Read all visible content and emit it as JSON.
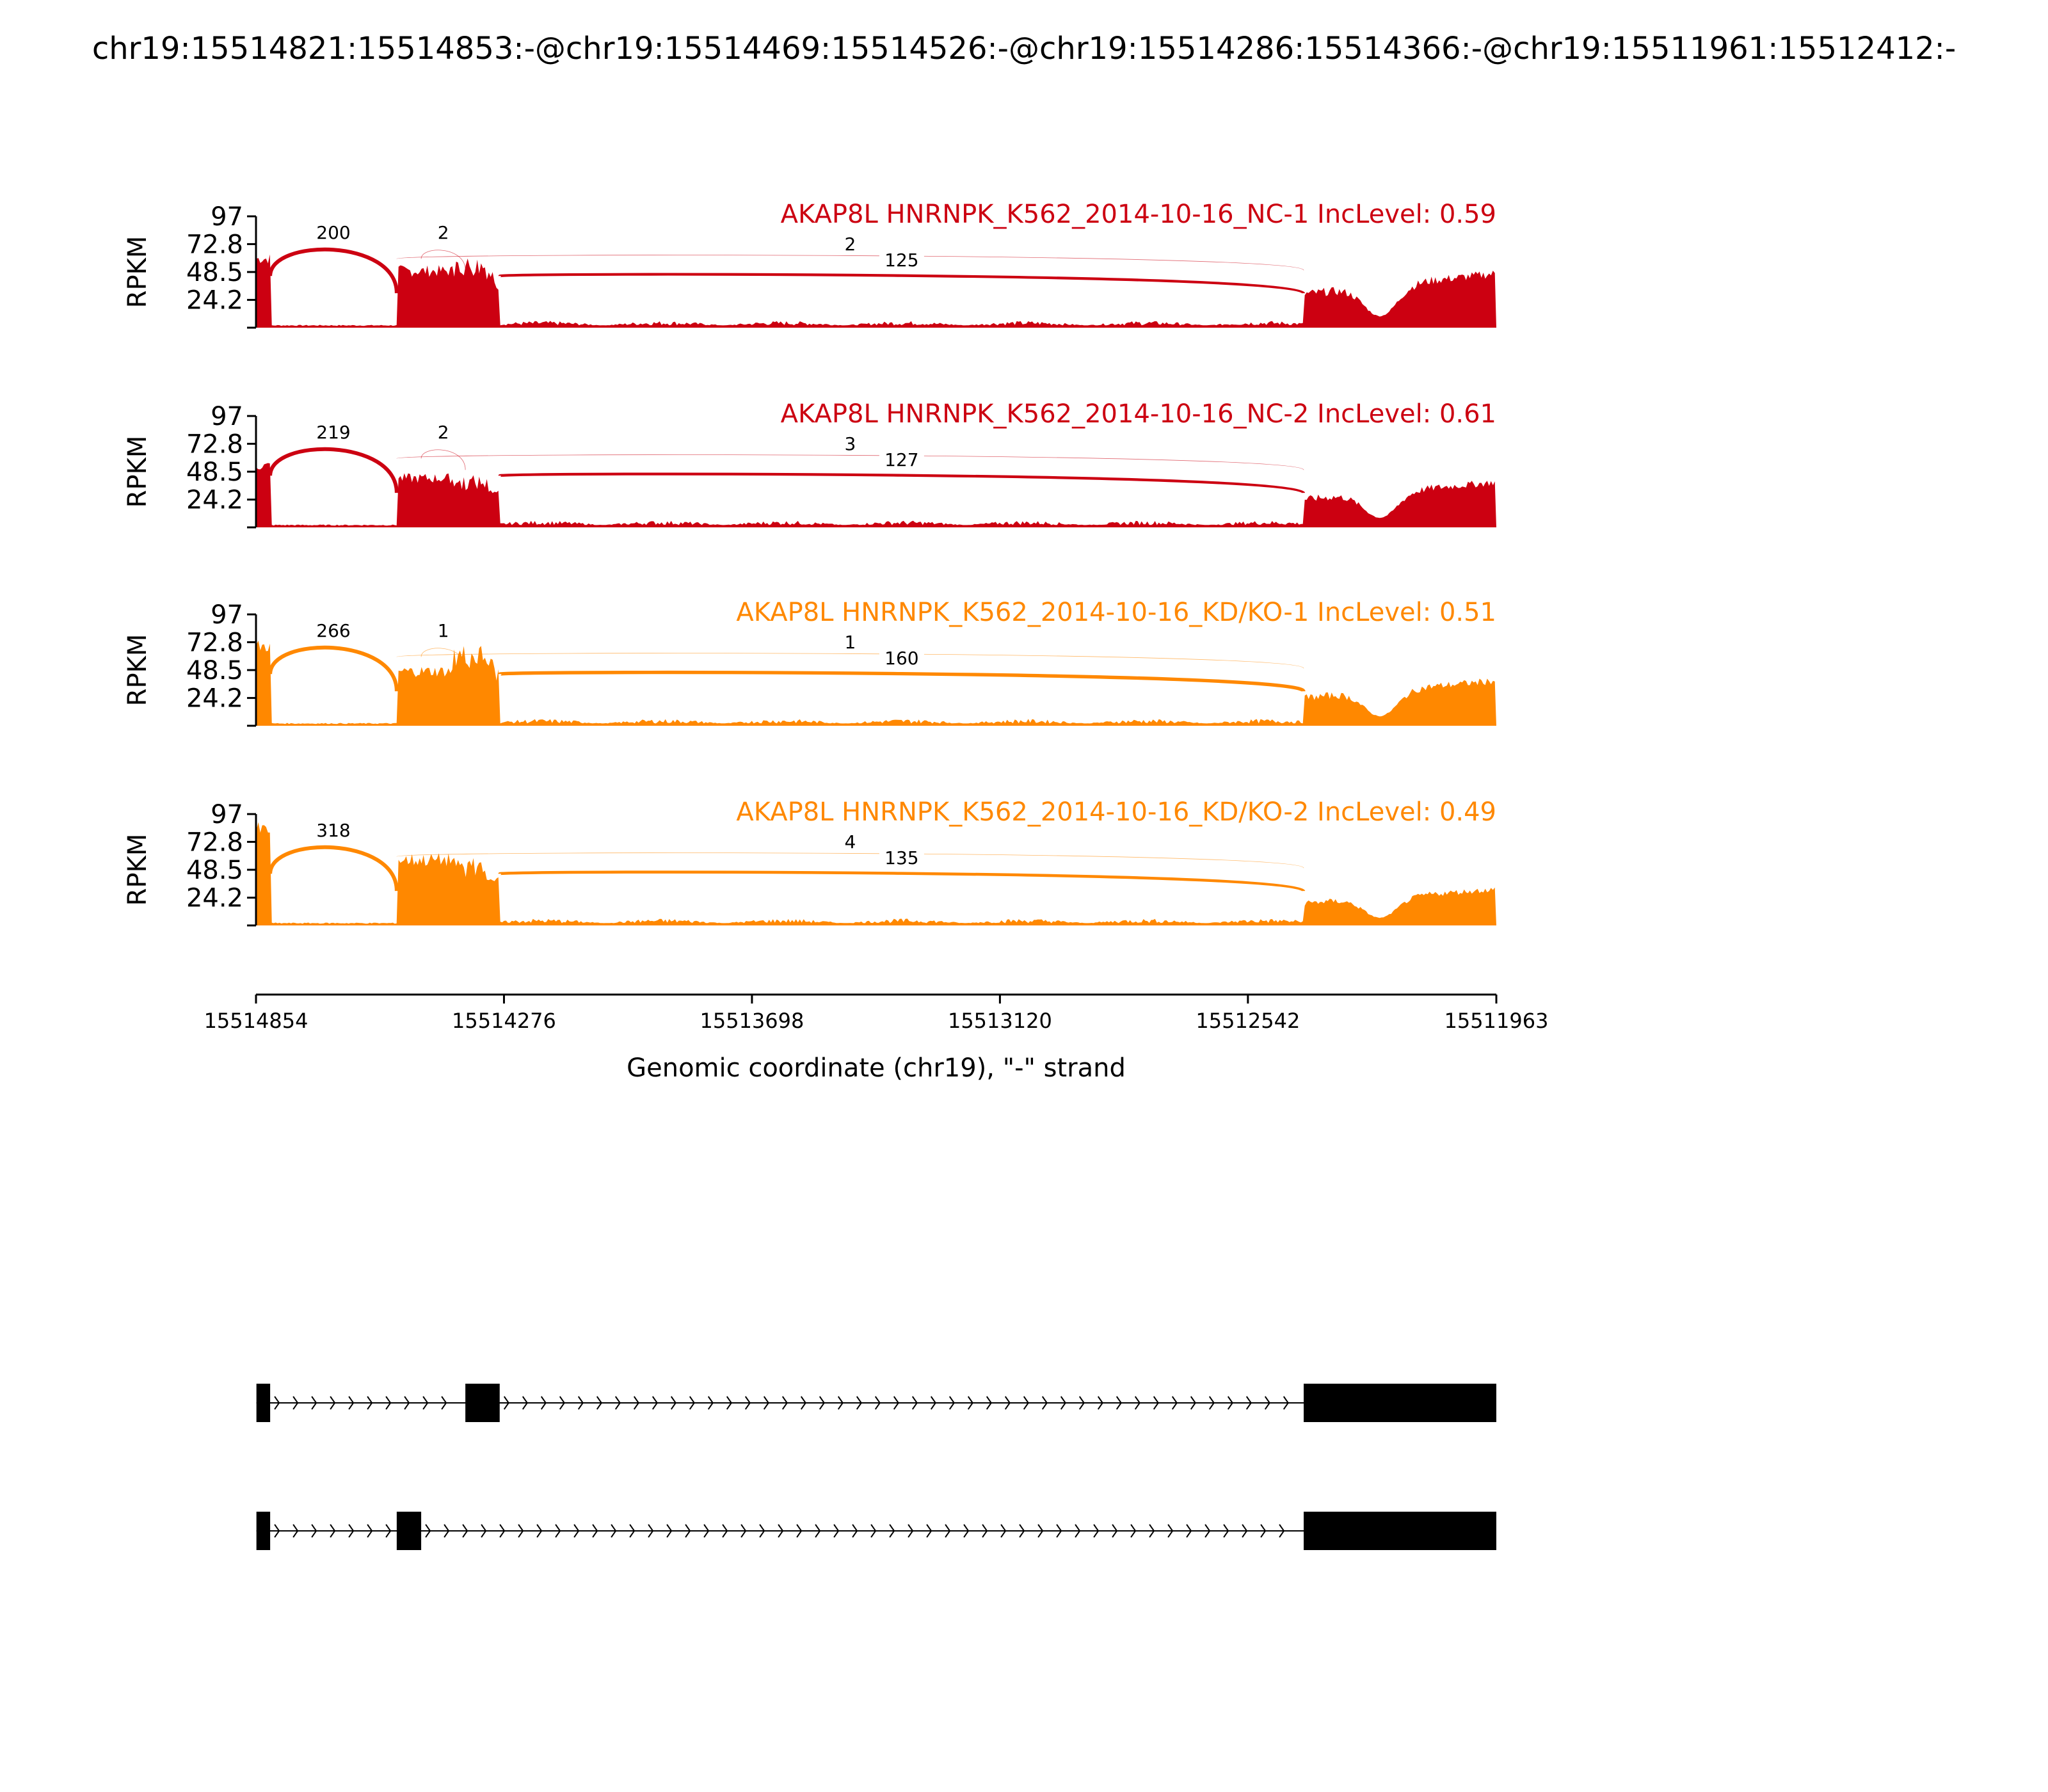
{
  "title": "chr19:15514821:15514853:-@chr19:15514469:15514526:-@chr19:15514286:15514366:-@chr19:15511961:15512412:-",
  "chart_data": {
    "type": "area",
    "subtype": "sashimi",
    "ylabel": "RPKM",
    "xlabel": "Genomic coordinate (chr19), \"-\" strand",
    "xlim": [
      15514854,
      15511963
    ],
    "ylim": [
      0,
      97
    ],
    "y_ticks": [
      "97",
      "72.8",
      "48.5",
      "24.2"
    ],
    "x_ticks": [
      "15514854",
      "15514276",
      "15513698",
      "15513120",
      "15512542",
      "15511963"
    ],
    "colors": {
      "NC": "#cc0011",
      "KD/KO": "#ff8800"
    },
    "exons": {
      "e1": [
        15514853,
        15514821
      ],
      "e2_short": [
        15514526,
        15514469
      ],
      "e2_long": [
        15514526,
        15514366
      ],
      "e3": [
        15514366,
        15514286
      ],
      "e4": [
        15512412,
        15511963
      ]
    },
    "panels": [
      {
        "label": "AKAP8L HNRNPK_K562_2014-10-16_NC-1 IncLevel: 0.59",
        "group": "NC",
        "exon_rpkm": {
          "e1": 65,
          "e2": 52,
          "e3": 55,
          "e4": 30
        },
        "junctions": [
          {
            "from": 15514821,
            "to": 15514526,
            "count": "200"
          },
          {
            "from": 15514469,
            "to": 15514366,
            "count": "2"
          },
          {
            "from": 15514526,
            "to": 15512412,
            "count": "2"
          },
          {
            "from": 15514286,
            "to": 15512412,
            "count": "125"
          }
        ]
      },
      {
        "label": "AKAP8L HNRNPK_K562_2014-10-16_NC-2 IncLevel: 0.61",
        "group": "NC",
        "exon_rpkm": {
          "e1": 58,
          "e2": 45,
          "e3": 40,
          "e4": 25
        },
        "junctions": [
          {
            "from": 15514821,
            "to": 15514526,
            "count": "219"
          },
          {
            "from": 15514469,
            "to": 15514366,
            "count": "2"
          },
          {
            "from": 15514526,
            "to": 15512412,
            "count": "3"
          },
          {
            "from": 15514286,
            "to": 15512412,
            "count": "127"
          }
        ]
      },
      {
        "label": "AKAP8L HNRNPK_K562_2014-10-16_KD/KO-1 IncLevel: 0.51",
        "group": "KD/KO",
        "exon_rpkm": {
          "e1": 75,
          "e2": 50,
          "e3": 62,
          "e4": 25
        },
        "junctions": [
          {
            "from": 15514821,
            "to": 15514526,
            "count": "266"
          },
          {
            "from": 15514469,
            "to": 15514366,
            "count": "1"
          },
          {
            "from": 15514526,
            "to": 15512412,
            "count": "1"
          },
          {
            "from": 15514286,
            "to": 15512412,
            "count": "160"
          }
        ]
      },
      {
        "label": "AKAP8L HNRNPK_K562_2014-10-16_KD/KO-2 IncLevel: 0.49",
        "group": "KD/KO",
        "exon_rpkm": {
          "e1": 90,
          "e2": 60,
          "e3": 52,
          "e4": 20
        },
        "junctions": [
          {
            "from": 15514821,
            "to": 15514526,
            "count": "318"
          },
          {
            "from": 15514526,
            "to": 15512412,
            "count": "4"
          },
          {
            "from": 15514286,
            "to": 15512412,
            "count": "135"
          }
        ]
      }
    ],
    "transcripts": [
      {
        "exons": [
          [
            15514853,
            15514821
          ],
          [
            15514366,
            15514286
          ],
          [
            15512412,
            15511963
          ]
        ]
      },
      {
        "exons": [
          [
            15514853,
            15514821
          ],
          [
            15514526,
            15514469
          ],
          [
            15512412,
            15511963
          ]
        ]
      }
    ]
  }
}
